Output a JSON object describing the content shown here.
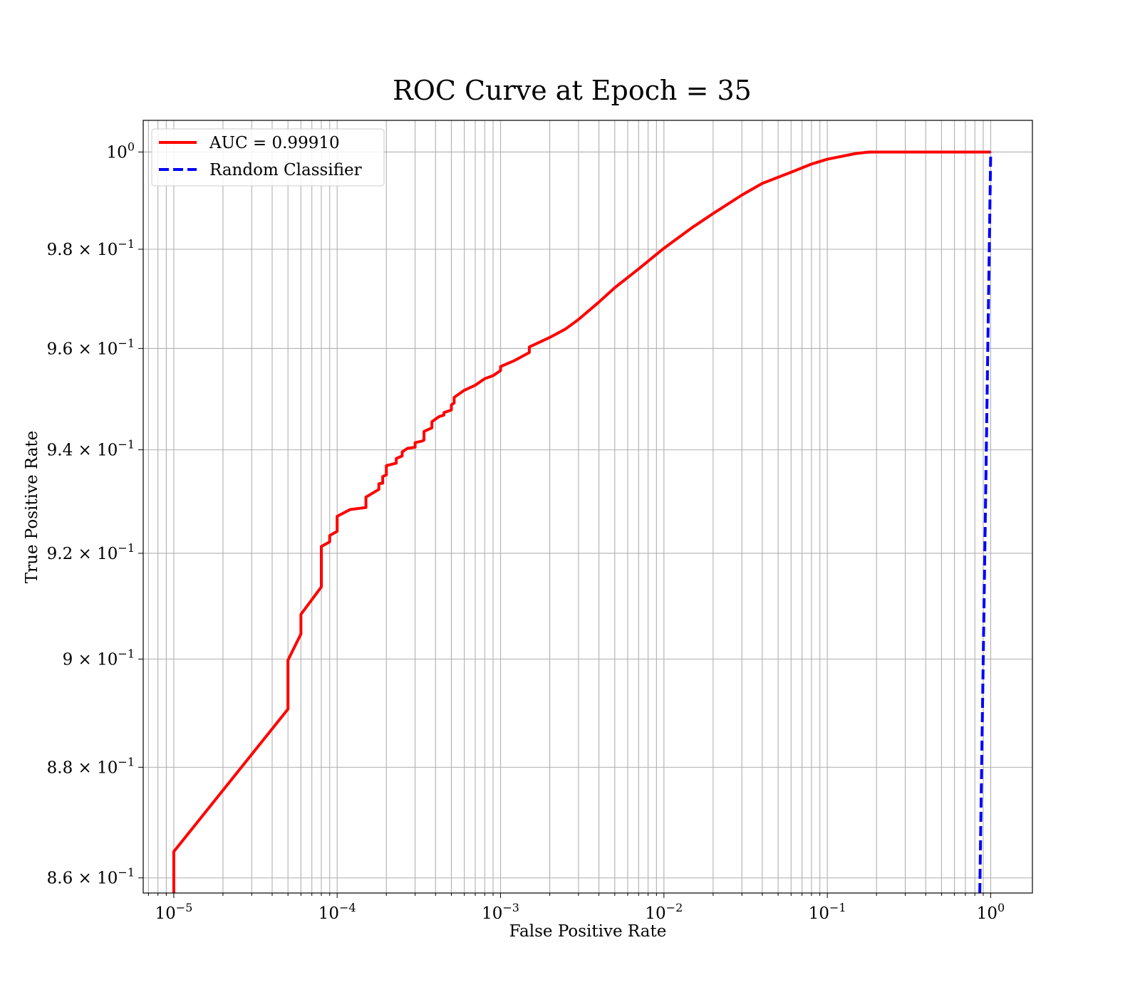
{
  "chart_data": {
    "type": "line",
    "title": "ROC Curve at Epoch = 35",
    "xlabel": "False Positive Rate",
    "ylabel": "True Positive Rate",
    "xscale": "log",
    "yscale": "log",
    "xlim": [
      6.5e-06,
      1.8
    ],
    "ylim": [
      0.8573,
      1.0066
    ],
    "grid": true,
    "grid_minor": true,
    "legend_position": "upper-left",
    "x_ticks": [
      {
        "value": 1e-05,
        "base": "10",
        "exp": "−5"
      },
      {
        "value": 0.0001,
        "base": "10",
        "exp": "−4"
      },
      {
        "value": 0.001,
        "base": "10",
        "exp": "−3"
      },
      {
        "value": 0.01,
        "base": "10",
        "exp": "−2"
      },
      {
        "value": 0.1,
        "base": "10",
        "exp": "−1"
      },
      {
        "value": 1,
        "base": "10",
        "exp": "0"
      }
    ],
    "y_ticks": [
      {
        "value": 0.86,
        "base": "8.6 × 10",
        "exp": "−1"
      },
      {
        "value": 0.88,
        "base": "8.8 × 10",
        "exp": "−1"
      },
      {
        "value": 0.9,
        "base": "9 × 10",
        "exp": "−1"
      },
      {
        "value": 0.92,
        "base": "9.2 × 10",
        "exp": "−1"
      },
      {
        "value": 0.94,
        "base": "9.4 × 10",
        "exp": "−1"
      },
      {
        "value": 0.96,
        "base": "9.6 × 10",
        "exp": "−1"
      },
      {
        "value": 0.98,
        "base": "9.8 × 10",
        "exp": "−1"
      },
      {
        "value": 1.0,
        "base": "10",
        "exp": "0"
      }
    ],
    "series": [
      {
        "name": "AUC = 0.99910",
        "color": "#ff0000",
        "style": "solid",
        "points": [
          [
            1e-05,
            0.8573
          ],
          [
            1e-05,
            0.8647
          ],
          [
            5e-05,
            0.8907
          ],
          [
            5e-05,
            0.8998
          ],
          [
            6e-05,
            0.9047
          ],
          [
            6e-05,
            0.9084
          ],
          [
            8e-05,
            0.9136
          ],
          [
            8e-05,
            0.9213
          ],
          [
            9e-05,
            0.9222
          ],
          [
            9e-05,
            0.9234
          ],
          [
            0.0001,
            0.9242
          ],
          [
            0.0001,
            0.9271
          ],
          [
            0.00012,
            0.9284
          ],
          [
            0.00015,
            0.9288
          ],
          [
            0.00015,
            0.9308
          ],
          [
            0.00018,
            0.9323
          ],
          [
            0.00018,
            0.9334
          ],
          [
            0.00019,
            0.9335
          ],
          [
            0.00019,
            0.9348
          ],
          [
            0.0002,
            0.9351
          ],
          [
            0.0002,
            0.9369
          ],
          [
            0.00023,
            0.9374
          ],
          [
            0.00023,
            0.9383
          ],
          [
            0.00025,
            0.9388
          ],
          [
            0.00025,
            0.9396
          ],
          [
            0.00027,
            0.9403
          ],
          [
            0.0003,
            0.9405
          ],
          [
            0.0003,
            0.9414
          ],
          [
            0.00033,
            0.9417
          ],
          [
            0.00034,
            0.9419
          ],
          [
            0.00034,
            0.9436
          ],
          [
            0.00038,
            0.9443
          ],
          [
            0.00038,
            0.9455
          ],
          [
            0.00042,
            0.9465
          ],
          [
            0.00045,
            0.9468
          ],
          [
            0.00045,
            0.9473
          ],
          [
            0.0005,
            0.9478
          ],
          [
            0.0005,
            0.9488
          ],
          [
            0.00052,
            0.9492
          ],
          [
            0.00052,
            0.9503
          ],
          [
            0.0006,
            0.9517
          ],
          [
            0.0007,
            0.9527
          ],
          [
            0.0008,
            0.954
          ],
          [
            0.0009,
            0.9546
          ],
          [
            0.001,
            0.9556
          ],
          [
            0.001,
            0.9564
          ],
          [
            0.0012,
            0.9575
          ],
          [
            0.0013,
            0.9581
          ],
          [
            0.0015,
            0.9592
          ],
          [
            0.0015,
            0.9603
          ],
          [
            0.002,
            0.9622
          ],
          [
            0.0025,
            0.9639
          ],
          [
            0.003,
            0.9658
          ],
          [
            0.004,
            0.9693
          ],
          [
            0.005,
            0.9722
          ],
          [
            0.007,
            0.976
          ],
          [
            0.01,
            0.9802
          ],
          [
            0.015,
            0.9845
          ],
          [
            0.02,
            0.9873
          ],
          [
            0.03,
            0.9911
          ],
          [
            0.04,
            0.9935
          ],
          [
            0.06,
            0.9958
          ],
          [
            0.08,
            0.9975
          ],
          [
            0.1,
            0.9985
          ],
          [
            0.15,
            0.9997
          ],
          [
            0.18,
            1.0
          ],
          [
            1.0,
            1.0
          ]
        ]
      },
      {
        "name": "Random Classifier",
        "color": "#0000ff",
        "style": "dashed",
        "points": [
          [
            0.8573,
            0.8573
          ],
          [
            1.0,
            1.0
          ]
        ]
      }
    ]
  }
}
